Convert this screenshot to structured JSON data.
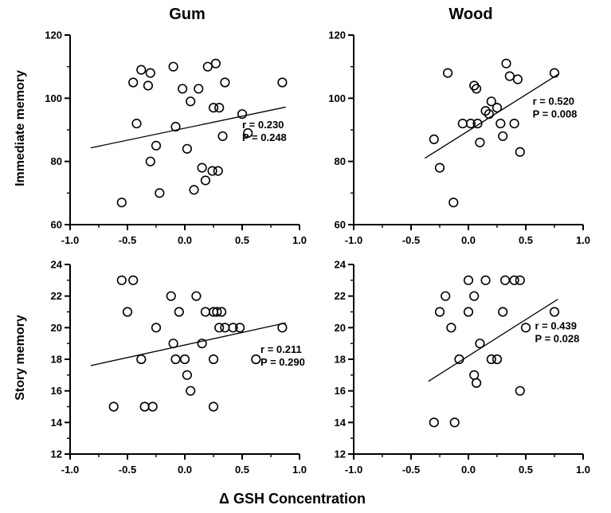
{
  "figure": {
    "xlabel": "Δ  GSH Concentration",
    "col_titles": [
      "Gum",
      "Wood"
    ],
    "row_labels": [
      "Immediate memory",
      "Story memory"
    ]
  },
  "chart_data": [
    {
      "type": "scatter",
      "title": "Gum",
      "ylabel": "Immediate memory",
      "xlabel": "Δ GSH Concentration",
      "xlim": [
        -1.0,
        1.0
      ],
      "ylim": [
        60,
        120
      ],
      "xtick_vals": [
        -1.0,
        -0.5,
        0.0,
        0.5,
        1.0
      ],
      "xtick_labels": [
        "-1.0",
        "-0.5",
        "0.0",
        "0.5",
        "1.0"
      ],
      "xminor": [
        -0.75,
        -0.25,
        0.25,
        0.75
      ],
      "ytick_vals": [
        60,
        80,
        100,
        120
      ],
      "ytick_labels": [
        "60",
        "80",
        "100",
        "120"
      ],
      "yminor": [
        70,
        90,
        110
      ],
      "grid": false,
      "marker": "open-circle",
      "points": [
        [
          -0.55,
          67
        ],
        [
          -0.45,
          105
        ],
        [
          -0.38,
          109
        ],
        [
          -0.32,
          104
        ],
        [
          -0.3,
          108
        ],
        [
          -0.42,
          92
        ],
        [
          -0.3,
          80
        ],
        [
          -0.25,
          85
        ],
        [
          -0.22,
          70
        ],
        [
          -0.1,
          110
        ],
        [
          -0.08,
          91
        ],
        [
          -0.02,
          103
        ],
        [
          0.02,
          84
        ],
        [
          0.05,
          99
        ],
        [
          0.08,
          71
        ],
        [
          0.12,
          103
        ],
        [
          0.15,
          78
        ],
        [
          0.18,
          74
        ],
        [
          0.2,
          110
        ],
        [
          0.27,
          111
        ],
        [
          0.25,
          97
        ],
        [
          0.3,
          97
        ],
        [
          0.24,
          77
        ],
        [
          0.29,
          77
        ],
        [
          0.35,
          105
        ],
        [
          0.33,
          88
        ],
        [
          0.5,
          95
        ],
        [
          0.55,
          89
        ],
        [
          0.85,
          105
        ]
      ],
      "fit_line": {
        "x": [
          -0.82,
          0.88
        ],
        "y": [
          84.3,
          97.2
        ]
      },
      "annotation": {
        "r": "r = 0.230",
        "p": "P = 0.248",
        "x": 0.5,
        "y": 90.5
      }
    },
    {
      "type": "scatter",
      "title": "Wood",
      "ylabel": "Immediate memory",
      "xlabel": "Δ GSH Concentration",
      "xlim": [
        -1.0,
        1.0
      ],
      "ylim": [
        60,
        120
      ],
      "xtick_vals": [
        -1.0,
        -0.5,
        0.0,
        0.5,
        1.0
      ],
      "xtick_labels": [
        "-1.0",
        "-0.5",
        "0.0",
        "0.5",
        "1.0"
      ],
      "xminor": [
        -0.75,
        -0.25,
        0.25,
        0.75
      ],
      "ytick_vals": [
        60,
        80,
        100,
        120
      ],
      "ytick_labels": [
        "60",
        "80",
        "100",
        "120"
      ],
      "yminor": [
        70,
        90,
        110
      ],
      "grid": false,
      "marker": "open-circle",
      "points": [
        [
          -0.3,
          87
        ],
        [
          -0.25,
          78
        ],
        [
          -0.18,
          108
        ],
        [
          -0.13,
          67
        ],
        [
          -0.05,
          92
        ],
        [
          0.02,
          92
        ],
        [
          0.05,
          104
        ],
        [
          0.07,
          103
        ],
        [
          0.08,
          92
        ],
        [
          0.1,
          86
        ],
        [
          0.15,
          96
        ],
        [
          0.18,
          95
        ],
        [
          0.2,
          99
        ],
        [
          0.25,
          97
        ],
        [
          0.28,
          92
        ],
        [
          0.3,
          88
        ],
        [
          0.33,
          111
        ],
        [
          0.36,
          107
        ],
        [
          0.4,
          92
        ],
        [
          0.43,
          106
        ],
        [
          0.45,
          83
        ],
        [
          0.75,
          108
        ]
      ],
      "fit_line": {
        "x": [
          -0.38,
          0.78
        ],
        "y": [
          81.0,
          107.5
        ]
      },
      "annotation": {
        "r": "r = 0.520",
        "p": "P = 0.008",
        "x": 0.56,
        "y": 98.0
      }
    },
    {
      "type": "scatter",
      "title": "Gum",
      "ylabel": "Story memory",
      "xlabel": "Δ GSH Concentration",
      "xlim": [
        -1.0,
        1.0
      ],
      "ylim": [
        12,
        24
      ],
      "xtick_vals": [
        -1.0,
        -0.5,
        0.0,
        0.5,
        1.0
      ],
      "xtick_labels": [
        "-1.0",
        "-0.5",
        "0.0",
        "0.5",
        "1.0"
      ],
      "xminor": [
        -0.75,
        -0.25,
        0.25,
        0.75
      ],
      "ytick_vals": [
        12,
        14,
        16,
        18,
        20,
        22,
        24
      ],
      "ytick_labels": [
        "12",
        "14",
        "16",
        "18",
        "20",
        "22",
        "24"
      ],
      "yminor": [
        13,
        15,
        17,
        19,
        21,
        23
      ],
      "grid": false,
      "marker": "open-circle",
      "points": [
        [
          -0.62,
          15
        ],
        [
          -0.55,
          23
        ],
        [
          -0.45,
          23
        ],
        [
          -0.5,
          21
        ],
        [
          -0.38,
          18
        ],
        [
          -0.35,
          15
        ],
        [
          -0.28,
          15
        ],
        [
          -0.25,
          20
        ],
        [
          -0.12,
          22
        ],
        [
          -0.1,
          19
        ],
        [
          -0.08,
          18
        ],
        [
          -0.05,
          21
        ],
        [
          0.0,
          18
        ],
        [
          0.02,
          17
        ],
        [
          0.05,
          16
        ],
        [
          0.1,
          22
        ],
        [
          0.15,
          19
        ],
        [
          0.18,
          21
        ],
        [
          0.25,
          21
        ],
        [
          0.28,
          21
        ],
        [
          0.32,
          21
        ],
        [
          0.3,
          20
        ],
        [
          0.35,
          20
        ],
        [
          0.25,
          18
        ],
        [
          0.25,
          15
        ],
        [
          0.42,
          20
        ],
        [
          0.48,
          20
        ],
        [
          0.62,
          18
        ],
        [
          0.85,
          20
        ]
      ],
      "fit_line": {
        "x": [
          -0.82,
          0.88
        ],
        "y": [
          17.6,
          20.3
        ]
      },
      "annotation": {
        "r": "r = 0.211",
        "p": "P = 0.290",
        "x": 0.66,
        "y": 18.4
      }
    },
    {
      "type": "scatter",
      "title": "Wood",
      "ylabel": "Story memory",
      "xlabel": "Δ GSH Concentration",
      "xlim": [
        -1.0,
        1.0
      ],
      "ylim": [
        12,
        24
      ],
      "xtick_vals": [
        -1.0,
        -0.5,
        0.0,
        0.5,
        1.0
      ],
      "xtick_labels": [
        "-1.0",
        "-0.5",
        "0.0",
        "0.5",
        "1.0"
      ],
      "xminor": [
        -0.75,
        -0.25,
        0.25,
        0.75
      ],
      "ytick_vals": [
        12,
        14,
        16,
        18,
        20,
        22,
        24
      ],
      "ytick_labels": [
        "12",
        "14",
        "16",
        "18",
        "20",
        "22",
        "24"
      ],
      "yminor": [
        13,
        15,
        17,
        19,
        21,
        23
      ],
      "grid": false,
      "marker": "open-circle",
      "points": [
        [
          -0.3,
          14
        ],
        [
          -0.25,
          21
        ],
        [
          -0.2,
          22
        ],
        [
          -0.15,
          20
        ],
        [
          -0.12,
          14
        ],
        [
          -0.08,
          18
        ],
        [
          0.0,
          23
        ],
        [
          0.0,
          21
        ],
        [
          0.05,
          22
        ],
        [
          0.05,
          17
        ],
        [
          0.07,
          16.5
        ],
        [
          0.1,
          19
        ],
        [
          0.15,
          23
        ],
        [
          0.2,
          18
        ],
        [
          0.25,
          18
        ],
        [
          0.3,
          21
        ],
        [
          0.32,
          23
        ],
        [
          0.4,
          23
        ],
        [
          0.45,
          23
        ],
        [
          0.45,
          16
        ],
        [
          0.5,
          20
        ],
        [
          0.75,
          21
        ]
      ],
      "fit_line": {
        "x": [
          -0.35,
          0.78
        ],
        "y": [
          16.6,
          21.8
        ]
      },
      "annotation": {
        "r": "r = 0.439",
        "p": "P = 0.028",
        "x": 0.58,
        "y": 19.9
      }
    }
  ]
}
